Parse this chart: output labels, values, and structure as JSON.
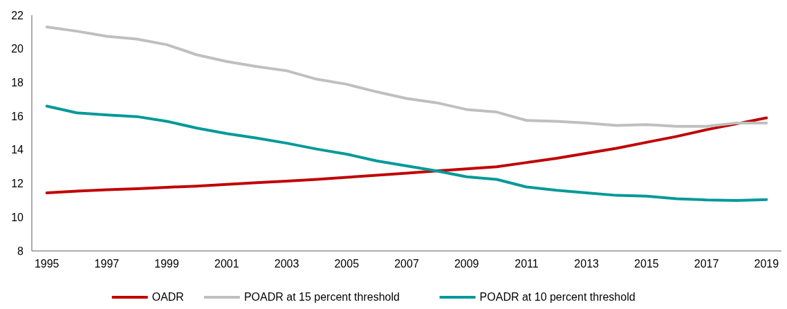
{
  "chart_data": {
    "type": "line",
    "x": [
      1995,
      1996,
      1997,
      1998,
      1999,
      2000,
      2001,
      2002,
      2003,
      2004,
      2005,
      2006,
      2007,
      2008,
      2009,
      2010,
      2011,
      2012,
      2013,
      2014,
      2015,
      2016,
      2017,
      2018,
      2019
    ],
    "series": [
      {
        "name": "OADR",
        "color": "#c00000",
        "values": [
          11.45,
          11.55,
          11.63,
          11.7,
          11.78,
          11.85,
          11.95,
          12.05,
          12.15,
          12.25,
          12.37,
          12.5,
          12.62,
          12.75,
          12.88,
          13.0,
          13.25,
          13.5,
          13.8,
          14.1,
          14.45,
          14.8,
          15.2,
          15.55,
          15.9
        ]
      },
      {
        "name": "POADR at 15 percent threshold",
        "color": "#bfbfbf",
        "values": [
          21.3,
          21.05,
          20.75,
          20.58,
          20.25,
          19.65,
          19.25,
          18.95,
          18.7,
          18.2,
          17.9,
          17.45,
          17.05,
          16.8,
          16.4,
          16.25,
          15.75,
          15.7,
          15.6,
          15.45,
          15.5,
          15.4,
          15.4,
          15.6,
          15.6
        ]
      },
      {
        "name": "POADR at 10 percent threshold",
        "color": "#009999",
        "values": [
          16.6,
          16.2,
          16.08,
          15.98,
          15.7,
          15.3,
          14.97,
          14.7,
          14.4,
          14.05,
          13.75,
          13.35,
          13.05,
          12.75,
          12.4,
          12.25,
          11.8,
          11.6,
          11.45,
          11.3,
          11.25,
          11.1,
          11.03,
          11.0,
          11.05
        ]
      }
    ],
    "xlim": [
      1994.5,
      2019.5
    ],
    "xticks": [
      1995,
      1997,
      1999,
      2001,
      2003,
      2005,
      2007,
      2009,
      2011,
      2013,
      2015,
      2017,
      2019
    ],
    "ylim": [
      8,
      22
    ],
    "yticks": [
      8,
      10,
      12,
      14,
      16,
      18,
      20,
      22
    ],
    "grid": false,
    "legend": "bottom",
    "marker": "none",
    "line_style": "solid"
  }
}
